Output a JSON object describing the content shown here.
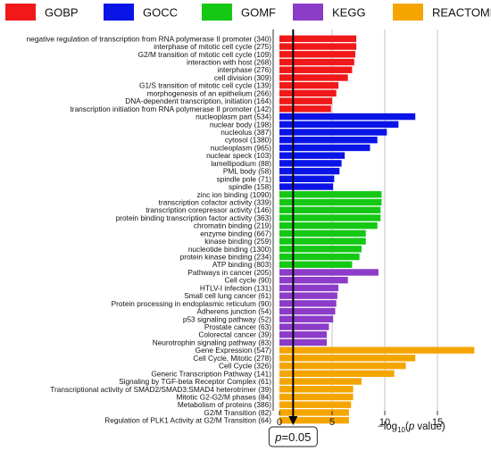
{
  "chart_data": {
    "type": "bar",
    "orientation": "horizontal",
    "xlabel_parts": [
      "−log",
      "10",
      "(",
      "p",
      " value)"
    ],
    "xlim": [
      0,
      19
    ],
    "xticks": [
      0,
      5,
      10,
      15
    ],
    "grid": "vertical",
    "legend_placement": "top",
    "legend": [
      {
        "name": "GOBP",
        "color": "#f01818"
      },
      {
        "name": "GOCC",
        "color": "#0a14e6"
      },
      {
        "name": "GOMF",
        "color": "#14c814"
      },
      {
        "name": "KEGG",
        "color": "#8c3cc8"
      },
      {
        "name": "REACTOME",
        "color": "#f5a500"
      }
    ],
    "threshold": {
      "value": 1.3,
      "label_italic": "p",
      "label_rest": "=0.05"
    },
    "groups": [
      {
        "name": "GOBP",
        "color": "#f01818",
        "bars": [
          {
            "label": "negative regulation of transcription from RNA polymerase II promoter (340)",
            "value": 7.3
          },
          {
            "label": "interphase of mitotic cell cycle (275)",
            "value": 7.3
          },
          {
            "label": "G2/M transition of mitotic cell cycle (109)",
            "value": 7.2
          },
          {
            "label": "interaction with host (268)",
            "value": 7.1
          },
          {
            "label": "interphase (276)",
            "value": 6.9
          },
          {
            "label": "cell division (309)",
            "value": 6.5
          },
          {
            "label": "G1/S transition of mitotic cell cycle (139)",
            "value": 5.6
          },
          {
            "label": "morphogenesis of an epithelium (266)",
            "value": 5.4
          },
          {
            "label": "DNA-dependent transcription, initiation (164)",
            "value": 5.0
          },
          {
            "label": "transcription initiation from RNA polymerase II promoter (142)",
            "value": 4.9
          }
        ]
      },
      {
        "name": "GOCC",
        "color": "#0a14e6",
        "bars": [
          {
            "label": "nucleoplasm part (534)",
            "value": 12.9
          },
          {
            "label": "nuclear body (198)",
            "value": 11.3
          },
          {
            "label": "nucleolus (387)",
            "value": 10.2
          },
          {
            "label": "cytosol (1380)",
            "value": 9.3
          },
          {
            "label": "nucleoplasm (965)",
            "value": 8.6
          },
          {
            "label": "nuclear speck (103)",
            "value": 6.2
          },
          {
            "label": "lamellipodium (88)",
            "value": 5.9
          },
          {
            "label": "PML body (58)",
            "value": 5.7
          },
          {
            "label": "spindle pole (71)",
            "value": 5.2
          },
          {
            "label": "spindle (158)",
            "value": 5.1
          }
        ]
      },
      {
        "name": "GOMF",
        "color": "#14c814",
        "bars": [
          {
            "label": "zinc ion binding (1090)",
            "value": 9.7
          },
          {
            "label": "transcription cofactor activity (339)",
            "value": 9.7
          },
          {
            "label": "transcription corepressor activity (146)",
            "value": 9.6
          },
          {
            "label": "protein binding transcription factor activity (363)",
            "value": 9.6
          },
          {
            "label": "chromatin binding (219)",
            "value": 9.3
          },
          {
            "label": "enzyme binding (667)",
            "value": 8.2
          },
          {
            "label": "kinase binding (259)",
            "value": 8.2
          },
          {
            "label": "nucleotide binding (1300)",
            "value": 7.8
          },
          {
            "label": "protein kinase binding (234)",
            "value": 7.6
          },
          {
            "label": "ATP binding (803)",
            "value": 6.9
          }
        ]
      },
      {
        "name": "KEGG",
        "color": "#8c3cc8",
        "bars": [
          {
            "label": "Pathways in cancer (205)",
            "value": 9.4
          },
          {
            "label": "Cell cycle (90)",
            "value": 6.5
          },
          {
            "label": "HTLV-I infection (131)",
            "value": 5.6
          },
          {
            "label": "Small cell lung cancer (61)",
            "value": 5.5
          },
          {
            "label": "Protein processing in endoplasmic reticulum (90)",
            "value": 5.4
          },
          {
            "label": "Adherens junction (54)",
            "value": 5.3
          },
          {
            "label": "p53 signaling pathway (52)",
            "value": 5.1
          },
          {
            "label": "Prostate cancer (63)",
            "value": 4.7
          },
          {
            "label": "Colorectal cancer (39)",
            "value": 4.5
          },
          {
            "label": "Neurotrophin signaling pathway (83)",
            "value": 4.5
          }
        ]
      },
      {
        "name": "REACTOME",
        "color": "#f5a500",
        "bars": [
          {
            "label": "Gene Expression (547)",
            "value": 18.5
          },
          {
            "label": "Cell Cycle, Mitotic (278)",
            "value": 12.9
          },
          {
            "label": "Cell Cycle (326)",
            "value": 12.0
          },
          {
            "label": "Generic Transcription Pathway (141)",
            "value": 10.9
          },
          {
            "label": "Signaling by TGF-beta Receptor Complex (61)",
            "value": 7.8
          },
          {
            "label": "Transcriptional activity of SMAD2/SMAD3:SMAD4 heterotrimer (39)",
            "value": 7.0
          },
          {
            "label": "Mitotic G2-G2/M phases (84)",
            "value": 7.0
          },
          {
            "label": "Metabolism of proteins (386)",
            "value": 6.8
          },
          {
            "label": "G2/M Transition (82)",
            "value": 6.6
          },
          {
            "label": "Regulation of PLK1 Activity at G2/M Transition (64)",
            "value": 6.6
          }
        ]
      }
    ]
  }
}
